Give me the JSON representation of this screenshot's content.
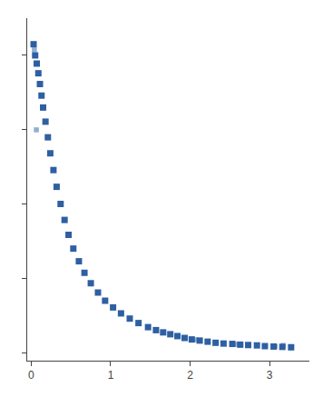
{
  "chart_data": {
    "type": "scatter",
    "series": [
      {
        "color": "#2e5fa3",
        "marker": "square",
        "x": [
          0.03,
          0.05,
          0.07,
          0.09,
          0.11,
          0.13,
          0.15,
          0.18,
          0.21,
          0.24,
          0.28,
          0.32,
          0.37,
          0.42,
          0.47,
          0.53,
          0.6,
          0.67,
          0.75,
          0.84,
          0.93,
          1.03,
          1.13,
          1.24,
          1.35,
          1.47,
          1.57,
          1.66,
          1.75,
          1.84,
          1.93,
          2.02,
          2.12,
          2.22,
          2.32,
          2.42,
          2.53,
          2.63,
          2.73,
          2.84,
          2.94,
          3.05,
          3.16,
          3.27
        ],
        "values": [
          0.83,
          0.8,
          0.778,
          0.752,
          0.723,
          0.692,
          0.66,
          0.622,
          0.58,
          0.537,
          0.492,
          0.447,
          0.401,
          0.358,
          0.318,
          0.281,
          0.247,
          0.216,
          0.188,
          0.163,
          0.141,
          0.123,
          0.107,
          0.093,
          0.081,
          0.07,
          0.062,
          0.056,
          0.051,
          0.046,
          0.041,
          0.037,
          0.034,
          0.031,
          0.028,
          0.026,
          0.025,
          0.023,
          0.022,
          0.021,
          0.019,
          0.018,
          0.017,
          0.016
        ]
      },
      {
        "color": "#90afd0",
        "marker": "square",
        "x": [
          0.04,
          0.065,
          2.07,
          2.57,
          3.07,
          3.17,
          3.27
        ],
        "values": [
          0.815,
          0.6,
          0.036,
          0.024,
          0.018,
          0.021,
          0.015
        ]
      }
    ],
    "xlim": [
      -0.05,
      3.5
    ],
    "xticks": [
      0,
      1,
      2,
      3
    ],
    "ylim": [
      -0.02,
      0.9
    ],
    "yticks": [
      0,
      0.2,
      0.4,
      0.6,
      0.8
    ],
    "tick_labels": "x",
    "grid": false
  }
}
